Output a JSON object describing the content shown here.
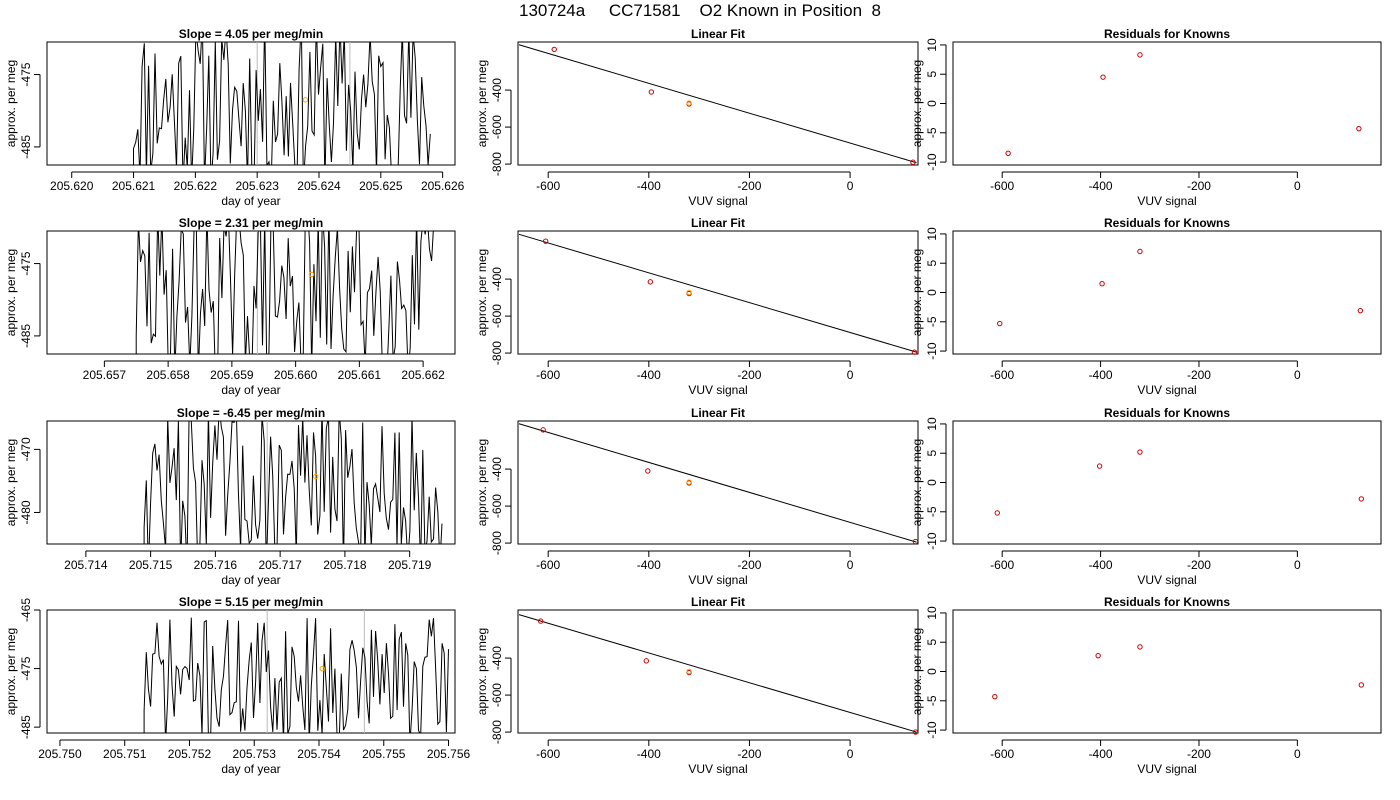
{
  "title": "130724a     CC71581    O2 Known in Position  8",
  "colors": {
    "trace": "#000000",
    "highlight": "#ffa500",
    "point": "#cc0000",
    "fit": "#000000",
    "gray_band": "#bbbbbb"
  },
  "labels": {
    "slope_prefix": "Slope =  ",
    "slope_suffix": "  per meg/min",
    "linfit_title": "Linear Fit",
    "resid_title": "Residuals for Knowns",
    "ylabel": "approx. per meg",
    "xlabel_time": "day of year",
    "xlabel_vuv": "VUV signal"
  },
  "chart_data": [
    {
      "row": 1,
      "slope": {
        "type": "line",
        "slope_text": "4.05",
        "xlim": [
          205.6196,
          205.6262
        ],
        "ylim": [
          -487.5,
          -470.5
        ],
        "xticks": [
          "205.620",
          "205.621",
          "205.622",
          "205.623",
          "205.624",
          "205.625",
          "205.626"
        ],
        "yticks": [
          "-475",
          "-485"
        ],
        "x_start": 205.621,
        "x_end": 205.6258,
        "seed": 11,
        "amp": 12,
        "center": -479,
        "gray_x": [
          205.623,
          205.6245
        ],
        "highlight": {
          "x": 205.62378,
          "y": -478.5
        }
      },
      "fit": {
        "type": "scatter",
        "xlim": [
          -660,
          135
        ],
        "ylim": [
          -805,
          -140
        ],
        "xticks": [
          "-600",
          "-400",
          "-200",
          "0"
        ],
        "yticks": [
          "-400",
          "-600",
          "-800"
        ],
        "points": [
          {
            "x": -588,
            "y": -180,
            "c": "red"
          },
          {
            "x": -395,
            "y": -410,
            "c": "red"
          },
          {
            "x": -320,
            "y": -475,
            "c": "red"
          },
          {
            "x": -320,
            "y": -470,
            "c": "orange"
          },
          {
            "x": 125,
            "y": -790,
            "c": "red"
          }
        ],
        "line": [
          [
            -658,
            -155
          ],
          [
            132,
            -793
          ]
        ]
      },
      "resid": {
        "type": "scatter",
        "xlim": [
          -700,
          170
        ],
        "ylim": [
          -10.5,
          10.5
        ],
        "xticks": [
          "-600",
          "-400",
          "-200",
          "0"
        ],
        "yticks": [
          "-10",
          "-5",
          "0",
          "5",
          "10"
        ],
        "points": [
          {
            "x": -588,
            "y": -8.5
          },
          {
            "x": -395,
            "y": 4.5
          },
          {
            "x": -320,
            "y": 8.3
          },
          {
            "x": 125,
            "y": -4.3
          }
        ]
      }
    },
    {
      "row": 2,
      "slope": {
        "type": "line",
        "slope_text": "2.31",
        "xlim": [
          205.6561,
          205.6625
        ],
        "ylim": [
          -487.5,
          -470.5
        ],
        "xticks": [
          "205.657",
          "205.658",
          "205.659",
          "205.660",
          "205.661",
          "205.662"
        ],
        "yticks": [
          "-475",
          "-485"
        ],
        "x_start": 205.6575,
        "x_end": 205.6622,
        "seed": 29,
        "amp": 12,
        "center": -479,
        "gray_x": [
          205.6594
        ],
        "highlight": {
          "x": 205.66025,
          "y": -476.5
        }
      },
      "fit": {
        "type": "scatter",
        "xlim": [
          -660,
          135
        ],
        "ylim": [
          -805,
          -140
        ],
        "xticks": [
          "-600",
          "-400",
          "-200",
          "0"
        ],
        "yticks": [
          "-400",
          "-600",
          "-800"
        ],
        "points": [
          {
            "x": -605,
            "y": -195,
            "c": "red"
          },
          {
            "x": -397,
            "y": -415,
            "c": "red"
          },
          {
            "x": -320,
            "y": -478,
            "c": "red"
          },
          {
            "x": -320,
            "y": -472,
            "c": "orange"
          },
          {
            "x": 128,
            "y": -795,
            "c": "red"
          }
        ],
        "line": [
          [
            -658,
            -158
          ],
          [
            132,
            -795
          ]
        ]
      },
      "resid": {
        "type": "scatter",
        "xlim": [
          -700,
          170
        ],
        "ylim": [
          -10.5,
          10.5
        ],
        "xticks": [
          "-600",
          "-400",
          "-200",
          "0"
        ],
        "yticks": [
          "-10",
          "-5",
          "0",
          "5",
          "10"
        ],
        "points": [
          {
            "x": -605,
            "y": -5.3
          },
          {
            "x": -397,
            "y": 1.5
          },
          {
            "x": -320,
            "y": 7.0
          },
          {
            "x": 128,
            "y": -3.1
          }
        ]
      }
    },
    {
      "row": 3,
      "slope": {
        "type": "line",
        "slope_text": "-6.45",
        "xlim": [
          205.7134,
          205.7197
        ],
        "ylim": [
          -485.0,
          -465.5
        ],
        "xticks": [
          "205.714",
          "205.715",
          "205.716",
          "205.717",
          "205.718",
          "205.719"
        ],
        "yticks": [
          "-470",
          "-480"
        ],
        "x_start": 205.7149,
        "x_end": 205.7195,
        "seed": 47,
        "amp": 13,
        "center": -476,
        "gray_x": [
          205.7168
        ],
        "highlight": {
          "x": 205.71755,
          "y": -474.3
        }
      },
      "fit": {
        "type": "scatter",
        "xlim": [
          -660,
          135
        ],
        "ylim": [
          -805,
          -140
        ],
        "xticks": [
          "-600",
          "-400",
          "-200",
          "0"
        ],
        "yticks": [
          "-400",
          "-600",
          "-800"
        ],
        "points": [
          {
            "x": -610,
            "y": -188,
            "c": "red"
          },
          {
            "x": -402,
            "y": -410,
            "c": "red"
          },
          {
            "x": -320,
            "y": -475,
            "c": "red"
          },
          {
            "x": -320,
            "y": -470,
            "c": "orange"
          },
          {
            "x": 130,
            "y": -792,
            "c": "red"
          }
        ],
        "line": [
          [
            -658,
            -155
          ],
          [
            132,
            -795
          ]
        ]
      },
      "resid": {
        "type": "scatter",
        "xlim": [
          -700,
          170
        ],
        "ylim": [
          -10.5,
          10.5
        ],
        "xticks": [
          "-600",
          "-400",
          "-200",
          "0"
        ],
        "yticks": [
          "-10",
          "-5",
          "0",
          "5",
          "10"
        ],
        "points": [
          {
            "x": -610,
            "y": -5.2
          },
          {
            "x": -402,
            "y": 2.8
          },
          {
            "x": -320,
            "y": 5.2
          },
          {
            "x": 130,
            "y": -2.8
          }
        ]
      }
    },
    {
      "row": 4,
      "slope": {
        "type": "line",
        "slope_text": "5.15",
        "xlim": [
          205.7498,
          205.7561
        ],
        "ylim": [
          -486.0,
          -465.0
        ],
        "xticks": [
          "205.750",
          "205.751",
          "205.752",
          "205.753",
          "205.754",
          "205.755",
          "205.756"
        ],
        "yticks": [
          "-465",
          "-475",
          "-485"
        ],
        "x_start": 205.7513,
        "x_end": 205.756,
        "seed": 71,
        "amp": 11,
        "center": -477,
        "gray_x": [
          205.7532,
          205.7547
        ],
        "highlight": {
          "x": 205.75405,
          "y": -475.0
        }
      },
      "fit": {
        "type": "scatter",
        "xlim": [
          -660,
          135
        ],
        "ylim": [
          -805,
          -140
        ],
        "xticks": [
          "-600",
          "-400",
          "-200",
          "0"
        ],
        "yticks": [
          "-400",
          "-600",
          "-800"
        ],
        "points": [
          {
            "x": -615,
            "y": -200,
            "c": "red"
          },
          {
            "x": -405,
            "y": -415,
            "c": "red"
          },
          {
            "x": -320,
            "y": -478,
            "c": "red"
          },
          {
            "x": -320,
            "y": -472,
            "c": "orange"
          },
          {
            "x": 130,
            "y": -800,
            "c": "red"
          }
        ],
        "line": [
          [
            -658,
            -165
          ],
          [
            132,
            -800
          ]
        ]
      },
      "resid": {
        "type": "scatter",
        "xlim": [
          -700,
          170
        ],
        "ylim": [
          -10.5,
          10.5
        ],
        "xticks": [
          "-600",
          "-400",
          "-200",
          "0"
        ],
        "yticks": [
          "-10",
          "-5",
          "0",
          "5",
          "10"
        ],
        "points": [
          {
            "x": -615,
            "y": -4.3
          },
          {
            "x": -405,
            "y": 2.7
          },
          {
            "x": -320,
            "y": 4.2
          },
          {
            "x": 130,
            "y": -2.3
          }
        ]
      }
    }
  ]
}
